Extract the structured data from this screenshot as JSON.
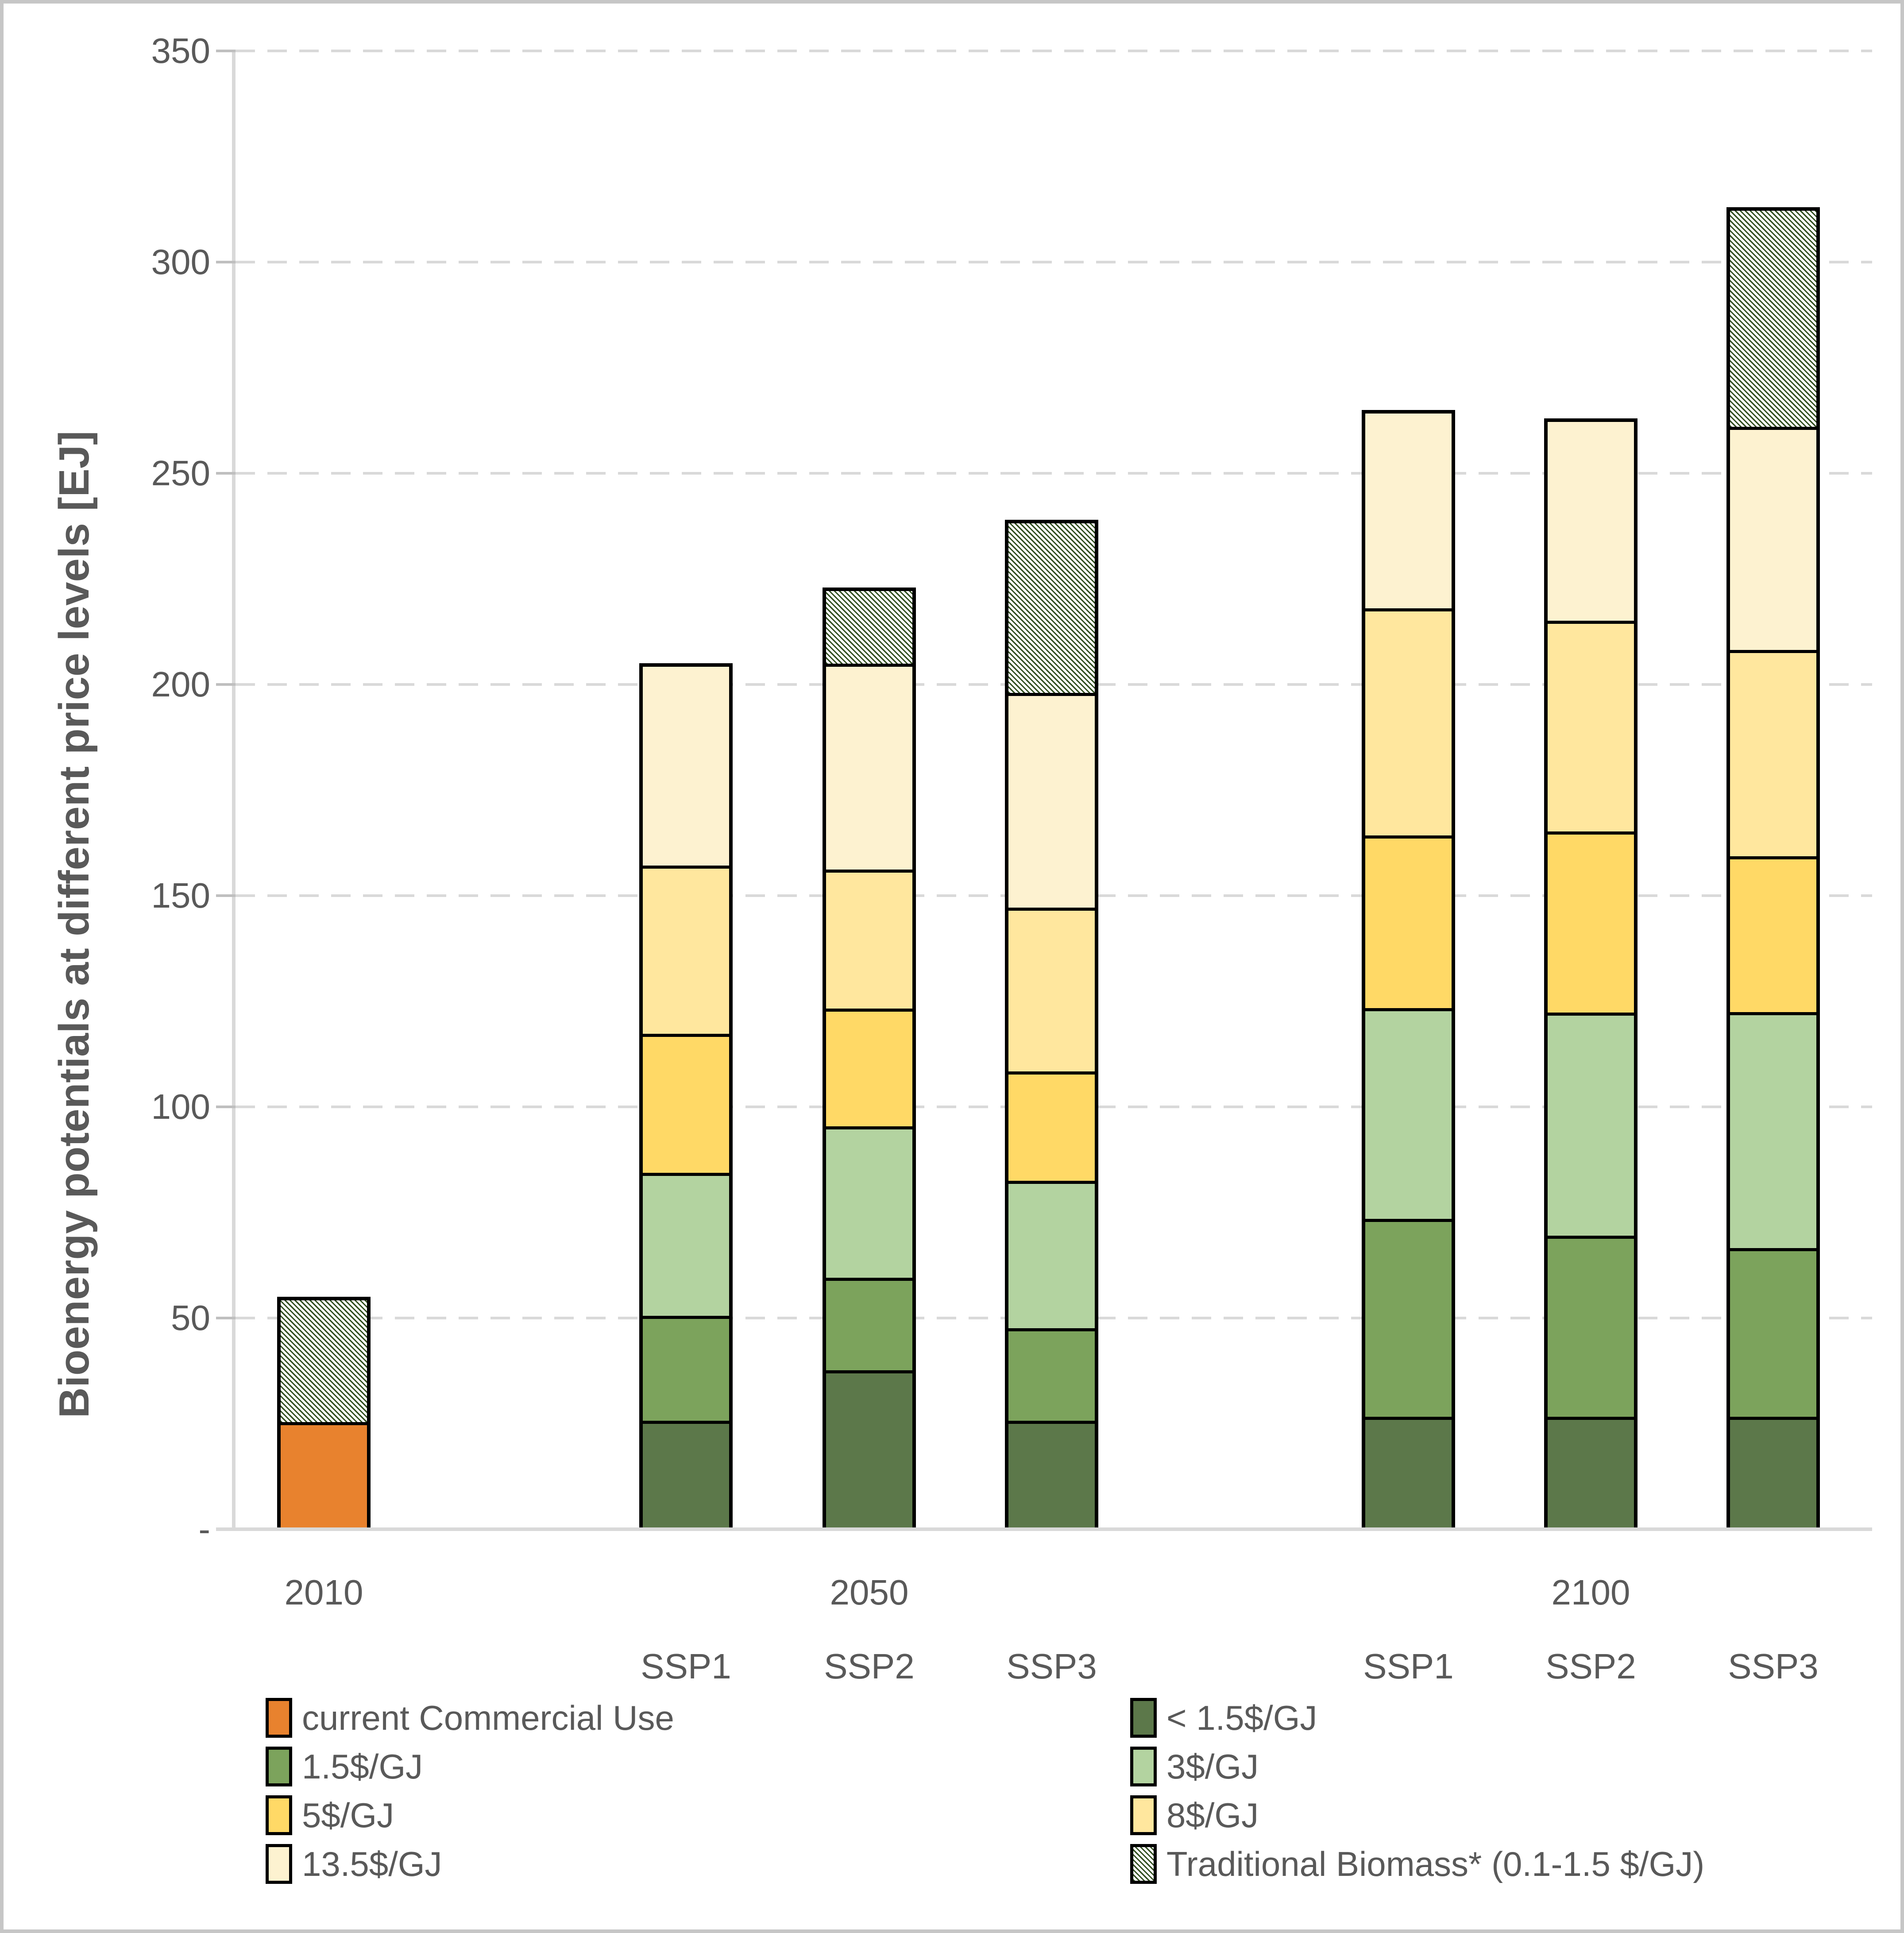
{
  "chart_data": {
    "type": "bar",
    "stacked": true,
    "title": "",
    "ylabel": "Bioenergy potentials at different price levels [EJ]",
    "xlabel": "",
    "ylim": [
      0,
      350
    ],
    "ytick_interval": 50,
    "ytick_labels": [
      "-",
      "50",
      "100",
      "150",
      "200",
      "250",
      "300",
      "350"
    ],
    "grid": "horizontal dashed",
    "legend_position": "bottom two-column",
    "categories": [
      "2010",
      "SSP1 2050",
      "SSP2 2050",
      "SSP3 2050",
      "SSP1 2100",
      "SSP2 2100",
      "SSP3 2100"
    ],
    "group_year_labels": [
      {
        "text": "2010",
        "bar_index": 0
      },
      {
        "text": "2050",
        "bar_index": 2
      },
      {
        "text": "2100",
        "bar_index": 5
      }
    ],
    "bar_sublabels": [
      "",
      "SSP1",
      "SSP2",
      "SSP3",
      "SSP1",
      "SSP2",
      "SSP3"
    ],
    "series": [
      {
        "name": "current Commercial Use",
        "color": "#E8822E",
        "pattern": "solid",
        "values": [
          25,
          0,
          0,
          0,
          0,
          0,
          0
        ]
      },
      {
        "name": "< 1.5$/GJ",
        "color": "#5C784A",
        "pattern": "solid",
        "values": [
          0,
          25,
          37,
          25,
          26,
          26,
          26
        ]
      },
      {
        "name": "1.5$/GJ",
        "color": "#7CA35C",
        "pattern": "solid",
        "values": [
          0,
          25,
          22,
          22,
          47,
          43,
          40
        ]
      },
      {
        "name": "3$/GJ",
        "color": "#B3D3A0",
        "pattern": "solid",
        "values": [
          0,
          34,
          36,
          35,
          50,
          53,
          56
        ]
      },
      {
        "name": "5$/GJ",
        "color": "#FFD966",
        "pattern": "solid",
        "values": [
          0,
          33,
          28,
          26,
          41,
          43,
          37
        ]
      },
      {
        "name": "8$/GJ",
        "color": "#FFE79E",
        "pattern": "solid",
        "values": [
          0,
          40,
          33,
          39,
          54,
          50,
          49
        ]
      },
      {
        "name": "13.5$/GJ",
        "color": "#FDF2D0",
        "pattern": "solid",
        "values": [
          0,
          48,
          49,
          51,
          47,
          48,
          53
        ]
      },
      {
        "name": "Traditional Biomass* (0.1-1.5 $/GJ)",
        "color": "#2F4D1D",
        "pattern": "diagonal-hatch",
        "values": [
          30,
          0,
          18,
          41,
          0,
          0,
          52
        ]
      }
    ],
    "bar_totals": [
      55,
      205,
      223,
      239,
      265,
      263,
      313
    ]
  },
  "legend": {
    "columns": [
      [
        "current Commercial Use",
        "1.5$/GJ",
        "5$/GJ",
        "13.5$/GJ"
      ],
      [
        "< 1.5$/GJ",
        "3$/GJ",
        "8$/GJ",
        "Traditional Biomass* (0.1-1.5 $/GJ)"
      ]
    ]
  },
  "colors": {
    "axis_line": "#d9d9d9",
    "gridline": "#d9d9d9",
    "tick_mark": "#bfbfbf",
    "text": "#595959",
    "bar_border": "#000000",
    "hatch_background": "#ffffff"
  }
}
